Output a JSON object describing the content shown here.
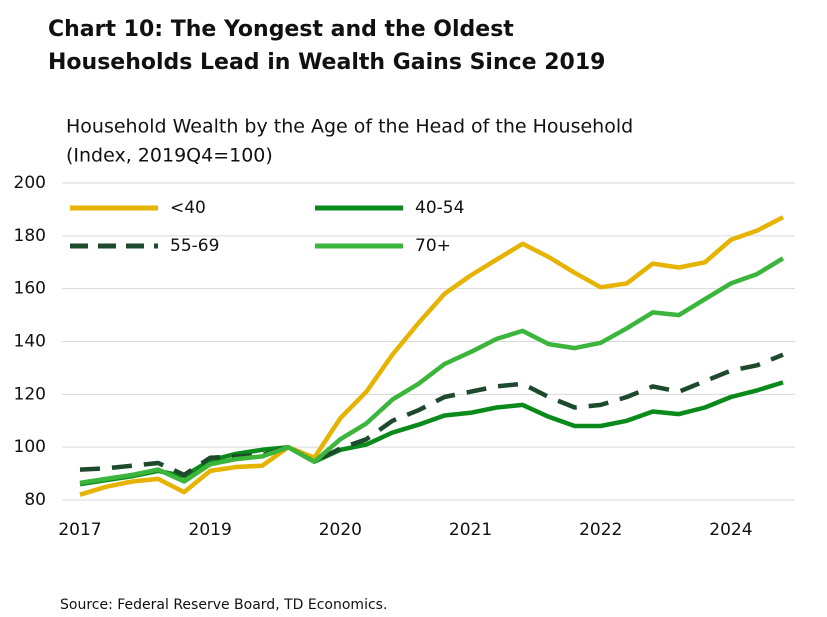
{
  "chart_data": {
    "type": "line",
    "title": [
      "Chart 10: The Yongest and the Oldest",
      "Households Lead in Wealth Gains Since 2019"
    ],
    "subtitle": [
      "Household Wealth by the Age of the Head of the Household",
      "(Index, 2019Q4=100)"
    ],
    "source": "Source: Federal Reserve Board, TD Economics.",
    "categories": [
      "2017",
      null,
      null,
      null,
      null,
      "2019",
      null,
      null,
      null,
      null,
      "2020",
      null,
      null,
      null,
      null,
      "2021",
      null,
      null,
      null,
      null,
      "2022",
      null,
      null,
      null,
      null,
      "2024",
      null,
      null
    ],
    "ylim": [
      80,
      200
    ],
    "yticks": [
      80,
      100,
      120,
      140,
      160,
      180,
      200
    ],
    "grid": true,
    "legend": "upper left",
    "series": [
      {
        "name": "<40",
        "color": "#e6b300",
        "dashed": false,
        "values": [
          82,
          85,
          87,
          88,
          83,
          91,
          92.5,
          93,
          100,
          96,
          111,
          121,
          135,
          147,
          158,
          165,
          171,
          177,
          172,
          166,
          160.5,
          162,
          169.5,
          168,
          170,
          178.5,
          182,
          187
        ]
      },
      {
        "name": "40-54",
        "color": "#0b8a1c",
        "dashed": false,
        "values": [
          86,
          87.5,
          89,
          91,
          89,
          95,
          97.5,
          99,
          100,
          94.5,
          99,
          101,
          105.5,
          108.5,
          112,
          113,
          115,
          116,
          111.5,
          108,
          108,
          110,
          113.5,
          112.5,
          115,
          119,
          121.5,
          124.5
        ]
      },
      {
        "name": "55-69",
        "color": "#1d4a2c",
        "dashed": true,
        "values": [
          91.5,
          92,
          93,
          94,
          89.5,
          96,
          96.5,
          97,
          100,
          94.5,
          99.5,
          103,
          110,
          114,
          119,
          121,
          123,
          124,
          119,
          115,
          116,
          119,
          123,
          121,
          125,
          129,
          131,
          135
        ]
      },
      {
        "name": "70+",
        "color": "#3cb53c",
        "dashed": false,
        "values": [
          86.5,
          88,
          89.5,
          91.5,
          87,
          93.5,
          95.5,
          96.5,
          100,
          94.5,
          103,
          109,
          118,
          124,
          131.5,
          136,
          141,
          144,
          139,
          137.5,
          139.5,
          145,
          151,
          150,
          156,
          162,
          165.5,
          171.5
        ]
      }
    ]
  }
}
